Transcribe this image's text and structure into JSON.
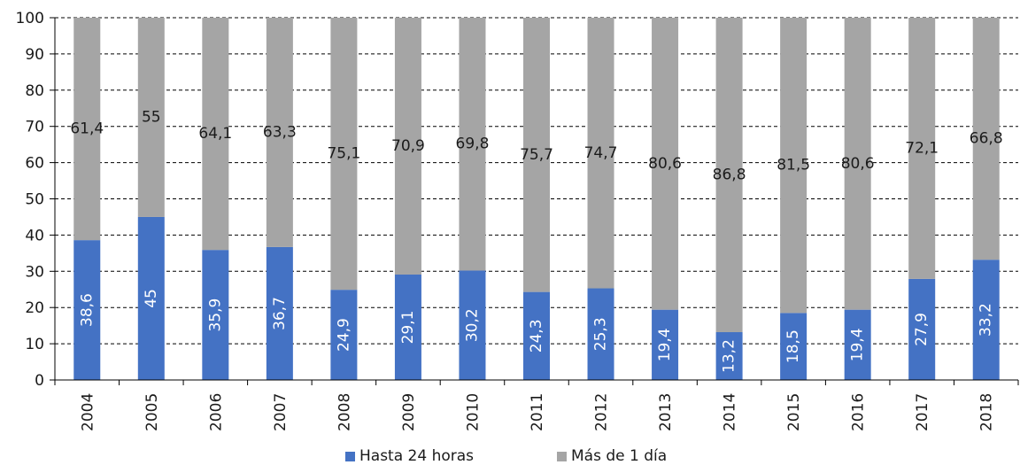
{
  "chart_data": {
    "type": "bar",
    "stacked": true,
    "categories": [
      "2004",
      "2005",
      "2006",
      "2007",
      "2008",
      "2009",
      "2010",
      "2011",
      "2012",
      "2013",
      "2014",
      "2015",
      "2016",
      "2017",
      "2018"
    ],
    "series": [
      {
        "name": "Hasta 24 horas",
        "color": "#4472c4",
        "values": [
          38.6,
          45,
          35.9,
          36.7,
          24.9,
          29.1,
          30.2,
          24.3,
          25.3,
          19.4,
          13.2,
          18.5,
          19.4,
          27.9,
          33.2
        ],
        "labels": [
          "38,6",
          "45",
          "35,9",
          "36,7",
          "24,9",
          "29,1",
          "30,2",
          "24,3",
          "25,3",
          "19,4",
          "13,2",
          "18,5",
          "19,4",
          "27,9",
          "33,2"
        ]
      },
      {
        "name": "Más de 1 día",
        "color": "#a5a5a5",
        "values": [
          61.4,
          55,
          64.1,
          63.3,
          75.1,
          70.9,
          69.8,
          75.7,
          74.7,
          80.6,
          86.8,
          81.5,
          80.6,
          72.1,
          66.8
        ],
        "labels": [
          "61,4",
          "55",
          "64,1",
          "63,3",
          "75,1",
          "70,9",
          "69,8",
          "75,7",
          "74,7",
          "80,6",
          "86,8",
          "81,5",
          "80,6",
          "72,1",
          "66,8"
        ]
      }
    ],
    "ylim": [
      0,
      100
    ],
    "yticks": [
      "0",
      "10",
      "20",
      "30",
      "40",
      "50",
      "60",
      "70",
      "80",
      "90",
      "100"
    ],
    "grid": true,
    "legend_position": "bottom"
  }
}
